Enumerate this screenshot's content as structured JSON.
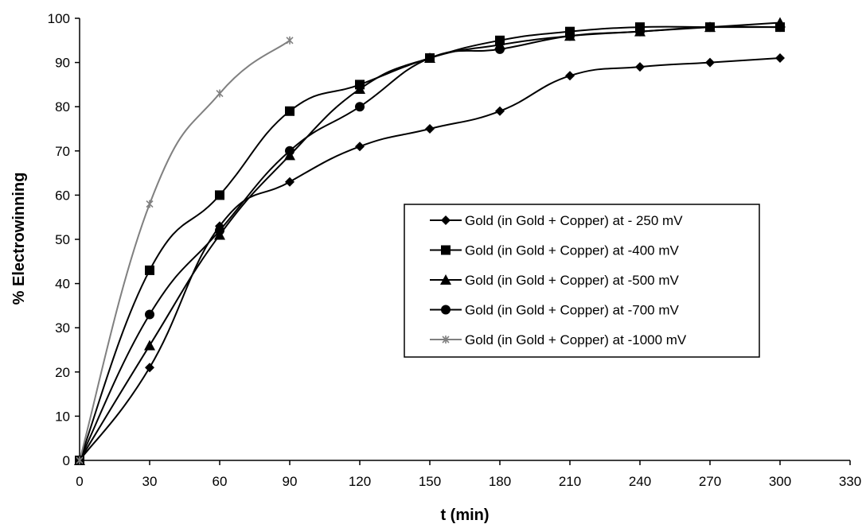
{
  "chart_data": {
    "type": "line",
    "title": "",
    "xlabel": "t (min)",
    "ylabel": "% Electrowinning",
    "xlim": [
      0,
      330
    ],
    "ylim": [
      0,
      100
    ],
    "x_ticks": [
      0,
      30,
      60,
      90,
      120,
      150,
      180,
      210,
      240,
      270,
      300,
      330
    ],
    "y_ticks": [
      0,
      10,
      20,
      30,
      40,
      50,
      60,
      70,
      80,
      90,
      100
    ],
    "grid": false,
    "smooth": true,
    "legend_position": "right-center",
    "series": [
      {
        "name": "Gold (in Gold + Copper) at - 250 mV",
        "marker": "diamond",
        "color": "#000000",
        "x": [
          0,
          30,
          60,
          90,
          120,
          150,
          180,
          210,
          240,
          270,
          300
        ],
        "y": [
          0,
          21,
          53,
          63,
          71,
          75,
          79,
          87,
          89,
          90,
          91
        ]
      },
      {
        "name": "Gold (in Gold + Copper) at -400 mV",
        "marker": "square",
        "color": "#000000",
        "x": [
          0,
          30,
          60,
          90,
          120,
          150,
          180,
          210,
          240,
          270,
          300
        ],
        "y": [
          0,
          43,
          60,
          79,
          85,
          91,
          95,
          97,
          98,
          98,
          98
        ]
      },
      {
        "name": "Gold (in Gold + Copper) at -500 mV",
        "marker": "triangle",
        "color": "#000000",
        "x": [
          0,
          30,
          60,
          90,
          120,
          150,
          180,
          210,
          240,
          270,
          300
        ],
        "y": [
          0,
          26,
          51,
          69,
          84,
          91,
          94,
          96,
          97,
          98,
          99
        ]
      },
      {
        "name": "Gold (in Gold + Copper) at -700 mV",
        "marker": "circle",
        "color": "#000000",
        "x": [
          0,
          30,
          60,
          90,
          120,
          150,
          180,
          210,
          240,
          270,
          300
        ],
        "y": [
          0,
          33,
          52,
          70,
          80,
          91,
          93,
          96,
          97,
          98,
          98
        ]
      },
      {
        "name": "Gold (in Gold + Copper) at -1000 mV",
        "marker": "star",
        "color": "#808080",
        "x": [
          0,
          30,
          60,
          90
        ],
        "y": [
          0,
          58,
          83,
          95
        ]
      }
    ]
  }
}
